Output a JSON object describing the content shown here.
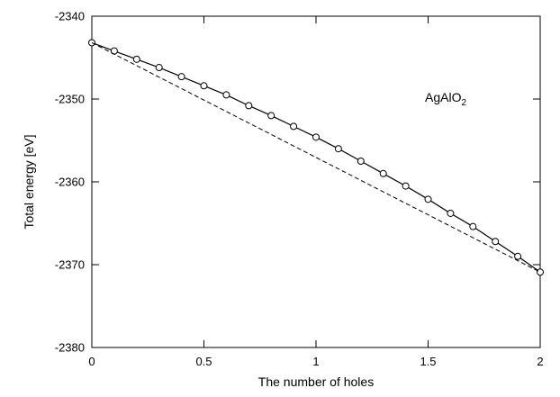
{
  "chart_data": {
    "type": "line",
    "title": "",
    "xlabel": "The number of holes",
    "ylabel": "Total energy [eV]",
    "xlim": [
      0,
      2
    ],
    "ylim": [
      -2380,
      -2340
    ],
    "grid": false,
    "x_ticks": [
      "0",
      "0.5",
      "1",
      "1.5",
      "2"
    ],
    "x_tick_values": [
      0,
      0.5,
      1,
      1.5,
      2
    ],
    "y_ticks": [
      "-2340",
      "-2350",
      "-2360",
      "-2370",
      "-2380"
    ],
    "y_tick_values": [
      -2340,
      -2350,
      -2360,
      -2370,
      -2380
    ],
    "annotation": {
      "base": "AgAlO",
      "subscript": "2"
    },
    "series": [
      {
        "style": "solid-with-circle-markers",
        "x": [
          0,
          0.1,
          0.2,
          0.3,
          0.4,
          0.5,
          0.6,
          0.7,
          0.8,
          0.9,
          1.0,
          1.1,
          1.2,
          1.3,
          1.4,
          1.5,
          1.6,
          1.7,
          1.8,
          1.9,
          2.0
        ],
        "y": [
          -2343.2,
          -2344.2,
          -2345.2,
          -2346.2,
          -2347.3,
          -2348.4,
          -2349.5,
          -2350.8,
          -2352.0,
          -2353.3,
          -2354.6,
          -2356.0,
          -2357.5,
          -2359.0,
          -2360.5,
          -2362.1,
          -2363.8,
          -2365.4,
          -2367.2,
          -2369.0,
          -2370.9
        ]
      },
      {
        "style": "dashed",
        "x": [
          0,
          2
        ],
        "y": [
          -2343.2,
          -2370.9
        ]
      }
    ]
  }
}
